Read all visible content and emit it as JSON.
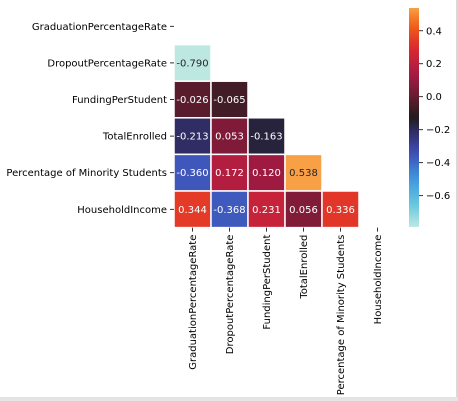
{
  "chart_data": {
    "type": "heatmap",
    "title": "",
    "labels": [
      "GraduationPercentageRate",
      "DropoutPercentageRate",
      "FundingPerStudent",
      "TotalEnrolled",
      "Percentage of Minority Students",
      "HouseholdIncome"
    ],
    "values": [
      [
        null,
        null,
        null,
        null,
        null,
        null
      ],
      [
        -0.79,
        null,
        null,
        null,
        null,
        null
      ],
      [
        -0.026,
        -0.065,
        null,
        null,
        null,
        null
      ],
      [
        -0.213,
        0.053,
        -0.163,
        null,
        null,
        null
      ],
      [
        -0.36,
        0.172,
        0.12,
        0.538,
        null,
        null
      ],
      [
        0.344,
        -0.368,
        0.231,
        0.056,
        0.336,
        null
      ]
    ],
    "value_labels": [
      [
        "",
        "",
        "",
        "",
        "",
        ""
      ],
      [
        "-0.790",
        "",
        "",
        "",
        "",
        ""
      ],
      [
        "-0.026",
        "-0.065",
        "",
        "",
        "",
        ""
      ],
      [
        "-0.213",
        "0.053",
        "-0.163",
        "",
        "",
        ""
      ],
      [
        "-0.360",
        "0.172",
        "0.120",
        "0.538",
        "",
        ""
      ],
      [
        "0.344",
        "-0.368",
        "0.231",
        "0.056",
        "0.336",
        ""
      ]
    ],
    "mask": "upper-triangle-including-diagonal",
    "colormap": "icefire",
    "vmin": -0.79,
    "vmax": 0.538,
    "colorbar_ticks": [
      "0.4",
      "0.2",
      "0.0",
      "−0.2",
      "−0.4",
      "−0.6"
    ],
    "colorbar_tick_values": [
      0.4,
      0.2,
      0.0,
      -0.2,
      -0.4,
      -0.6
    ],
    "cell_border_color": "#ffffff"
  }
}
